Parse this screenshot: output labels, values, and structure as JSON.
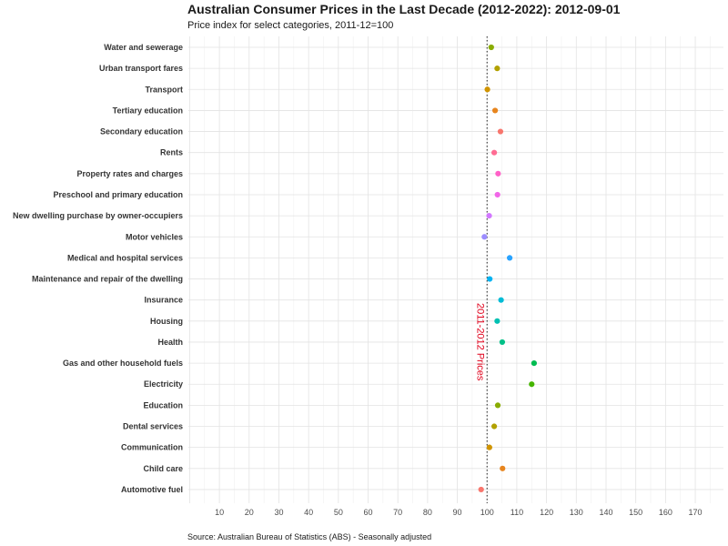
{
  "chart_data": {
    "type": "scatter",
    "title": "Australian Consumer Prices in the Last Decade (2012-2022): 2012-09-01",
    "subtitle": "Price index for select categories, 2011-12=100",
    "caption": "Source: Australian Bureau of Statistics (ABS) - Seasonally adjusted",
    "reference_line": {
      "value": 100,
      "label": "2011-2012 Prices",
      "color": "#e0001b",
      "style": "dotted"
    },
    "xlim": [
      0,
      178
    ],
    "x_ticks": [
      10,
      20,
      30,
      40,
      50,
      60,
      70,
      80,
      90,
      100,
      110,
      120,
      130,
      140,
      150,
      160,
      170
    ],
    "grid": true,
    "legend": "none",
    "categories": [
      "Automotive fuel",
      "Child care",
      "Communication",
      "Dental services",
      "Education",
      "Electricity",
      "Gas and other household fuels",
      "Health",
      "Housing",
      "Insurance",
      "Maintenance and repair of the dwelling",
      "Medical and hospital services",
      "Motor vehicles",
      "New dwelling purchase by owner-occupiers",
      "Preschool and primary education",
      "Property rates and charges",
      "Rents",
      "Secondary education",
      "Tertiary education",
      "Transport",
      "Urban transport fares",
      "Water and sewerage"
    ],
    "values": [
      98.0,
      105.2,
      100.8,
      102.4,
      103.6,
      115.0,
      115.8,
      105.1,
      103.4,
      104.7,
      100.9,
      107.6,
      99.1,
      100.7,
      103.5,
      103.7,
      102.4,
      104.5,
      102.7,
      100.1,
      103.4,
      101.4
    ],
    "colors": [
      "#f8766d",
      "#e7851e",
      "#d09400",
      "#b2a100",
      "#89ac00",
      "#45b500",
      "#00bc51",
      "#00c087",
      "#00c0b2",
      "#00bcd6",
      "#00b3f2",
      "#29a3ff",
      "#9c8dff",
      "#d277ff",
      "#f166e8",
      "#ff61c7",
      "#ff6c93",
      "#f8766d",
      "#e7851e",
      "#d09400",
      "#b2a100",
      "#89ac00"
    ]
  }
}
